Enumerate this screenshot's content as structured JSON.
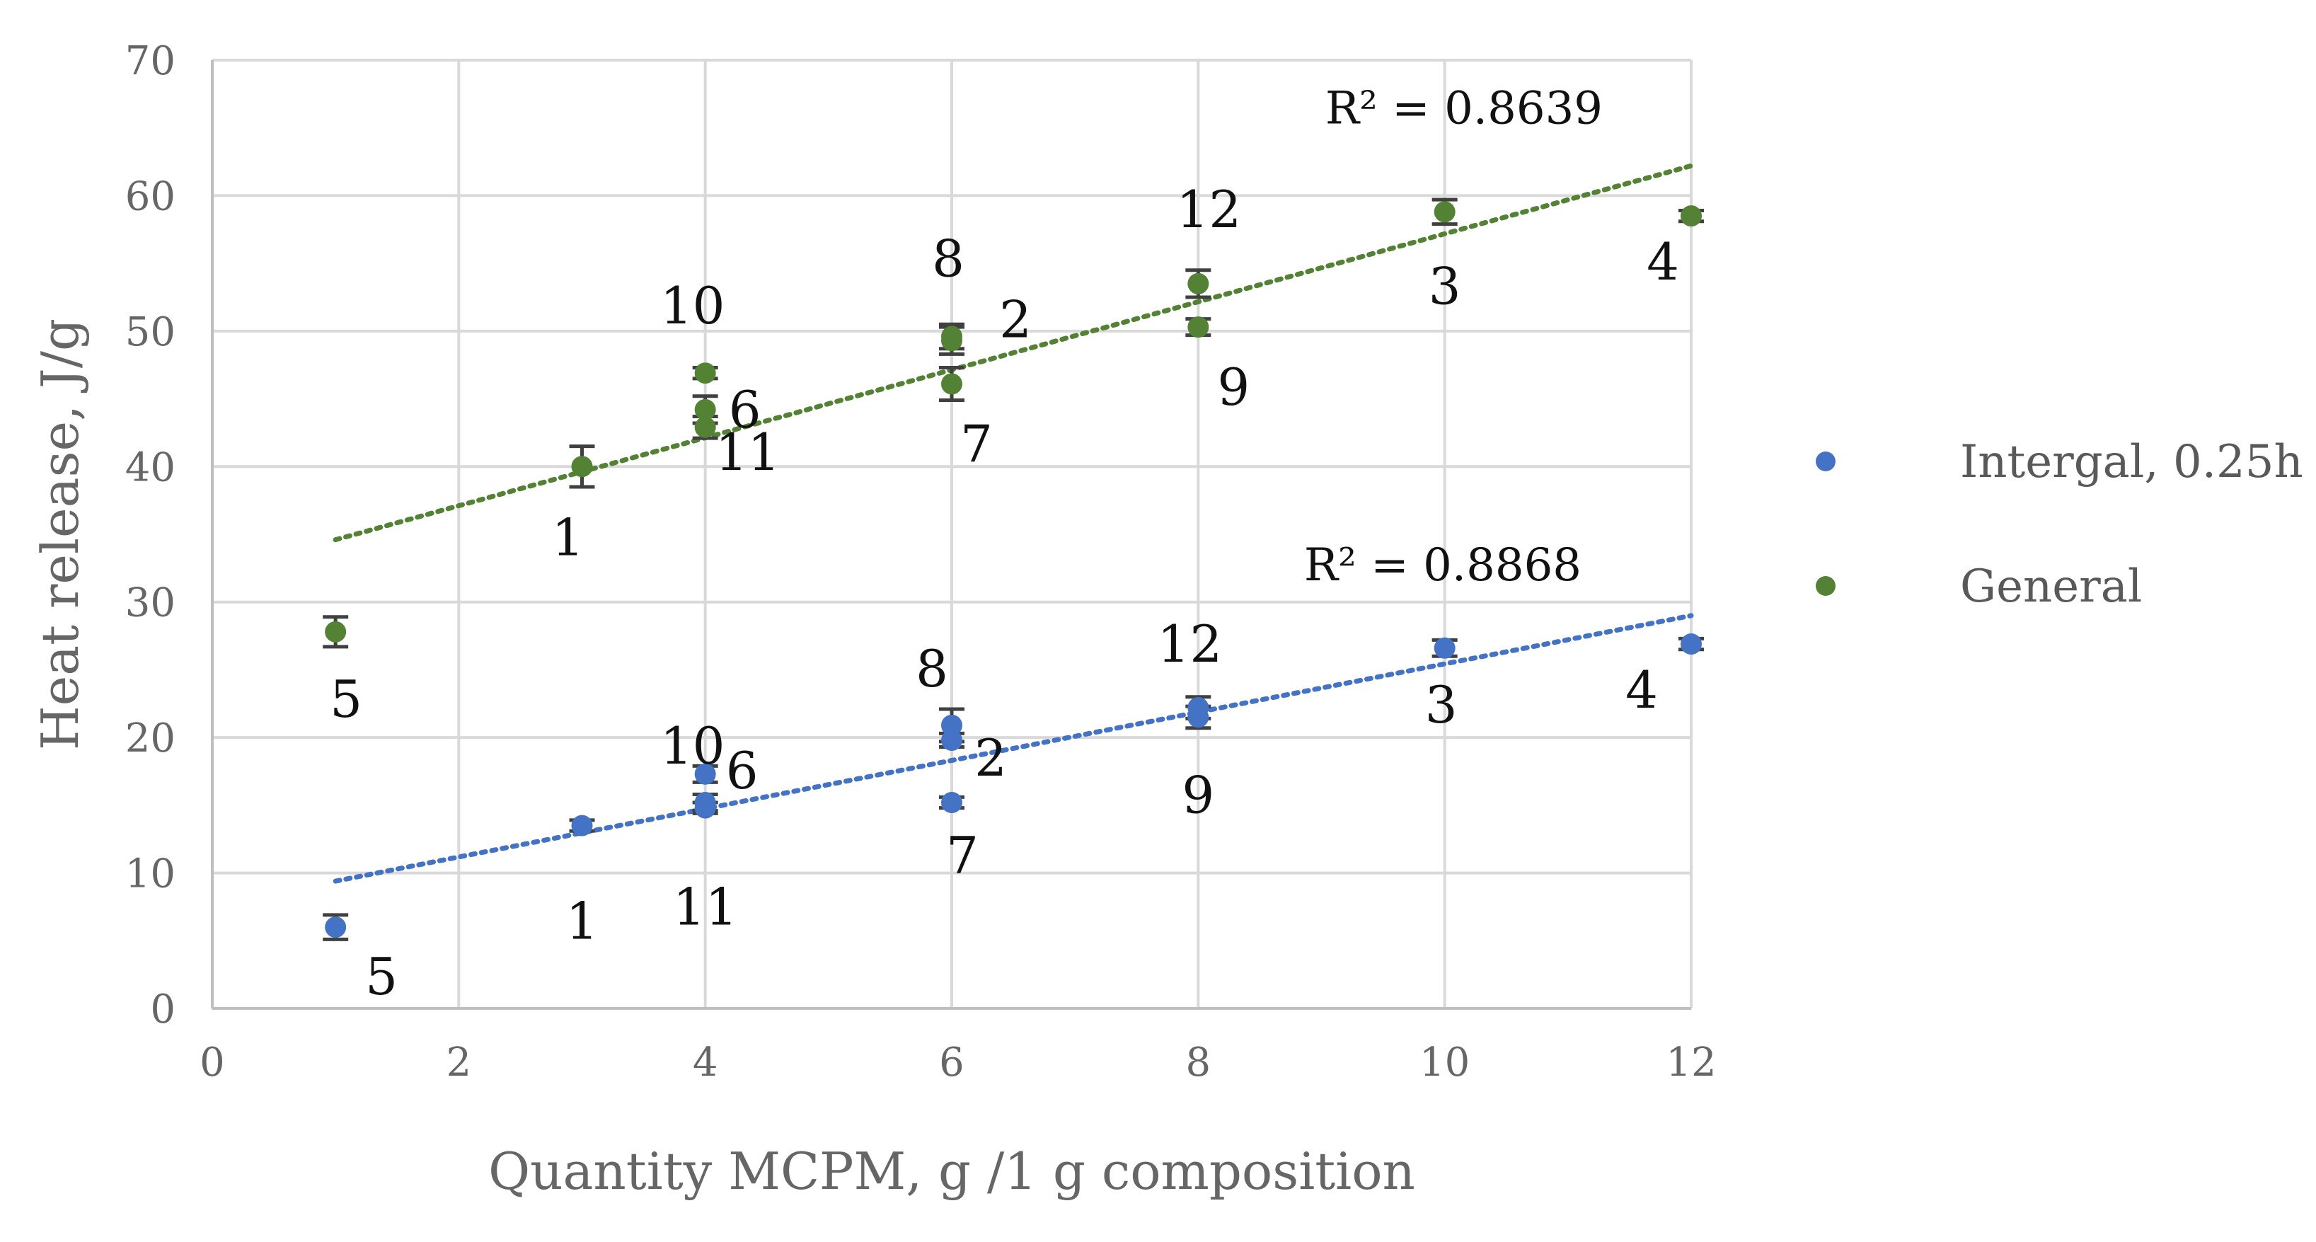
{
  "chart_data": {
    "type": "scatter",
    "title": "",
    "xlabel": "Quantity MCPM, g /1 g composition",
    "ylabel": "Heat release, J/g",
    "xlim": [
      0,
      12
    ],
    "ylim": [
      0,
      70
    ],
    "x_ticks": [
      0,
      2,
      4,
      6,
      8,
      10,
      12
    ],
    "y_ticks": [
      0,
      10,
      20,
      30,
      40,
      50,
      60,
      70
    ],
    "grid": true,
    "legend_position": "right",
    "series": [
      {
        "name": "Intergal, 0.25h",
        "color": "#4472c4",
        "trendline": {
          "type": "linear",
          "style": "dotted",
          "x_range": [
            1,
            12
          ],
          "y_range": [
            9.4,
            29.0
          ],
          "r2_text": "R² = 0.8868"
        },
        "points": [
          {
            "label": "1",
            "x": 3,
            "y": 13.5,
            "error": 0.4
          },
          {
            "label": "2",
            "x": 6,
            "y": 19.8,
            "error": 0.5
          },
          {
            "label": "3",
            "x": 10,
            "y": 26.6,
            "error": 0.6
          },
          {
            "label": "4",
            "x": 12,
            "y": 26.9,
            "error": 0.4
          },
          {
            "label": "5",
            "x": 1,
            "y": 6.0,
            "error": 0.9
          },
          {
            "label": "6",
            "x": 4,
            "y": 17.3,
            "error": 0.6
          },
          {
            "label": "7",
            "x": 6,
            "y": 15.2,
            "error": 0.4
          },
          {
            "label": "8",
            "x": 6,
            "y": 20.9,
            "error": 1.2
          },
          {
            "label": "9",
            "x": 8,
            "y": 21.5,
            "error": 0.8
          },
          {
            "label": "10",
            "x": 4,
            "y": 15.2,
            "error": 0.6
          },
          {
            "label": "11",
            "x": 4,
            "y": 14.8,
            "error": 0.4
          },
          {
            "label": "12",
            "x": 8,
            "y": 22.2,
            "error": 0.8
          }
        ]
      },
      {
        "name": "General",
        "color": "#548235",
        "trendline": {
          "type": "linear",
          "style": "dotted",
          "x_range": [
            1,
            12
          ],
          "y_range": [
            34.6,
            62.2
          ],
          "r2_text": "R² = 0.8639"
        },
        "points": [
          {
            "label": "1",
            "x": 3,
            "y": 40.0,
            "error": 1.5
          },
          {
            "label": "2",
            "x": 6,
            "y": 49.3,
            "error": 1.0
          },
          {
            "label": "3",
            "x": 10,
            "y": 58.8,
            "error": 0.9
          },
          {
            "label": "4",
            "x": 12,
            "y": 58.5,
            "error": 0.4
          },
          {
            "label": "5",
            "x": 1,
            "y": 27.8,
            "error": 1.1
          },
          {
            "label": "6",
            "x": 4,
            "y": 44.2,
            "error": 1.0
          },
          {
            "label": "7",
            "x": 6,
            "y": 46.1,
            "error": 1.2
          },
          {
            "label": "8",
            "x": 6,
            "y": 49.6,
            "error": 0.9
          },
          {
            "label": "9",
            "x": 8,
            "y": 50.3,
            "error": 0.6
          },
          {
            "label": "10",
            "x": 4,
            "y": 46.9,
            "error": 0.4
          },
          {
            "label": "11",
            "x": 4,
            "y": 42.9,
            "error": 0.8
          },
          {
            "label": "12",
            "x": 8,
            "y": 53.5,
            "error": 1.0
          }
        ]
      }
    ]
  }
}
